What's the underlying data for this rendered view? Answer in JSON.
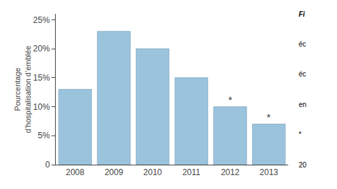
{
  "chart_data": {
    "type": "bar",
    "categories": [
      "2008",
      "2009",
      "2010",
      "2011",
      "2012",
      "2013"
    ],
    "values": [
      13,
      23,
      20,
      15,
      10,
      7
    ],
    "color": "#9bc3dc",
    "ylabel": "Pourcentage\nd’hospitalisation d’emblée",
    "ylim": [
      0,
      26
    ],
    "yticks": [
      0,
      {
        "value": 5,
        "label": "5%"
      },
      {
        "value": 10,
        "label": "10%"
      },
      {
        "value": 15,
        "label": "15%"
      },
      {
        "value": 20,
        "label": "20%"
      },
      {
        "value": 25,
        "label": "25%"
      }
    ],
    "grid": false,
    "annotations": [
      {
        "category": "2012",
        "text": "*"
      },
      {
        "category": "2013",
        "text": "*"
      },
      {
        "text": "Fi"
      },
      {
        "text": "éc"
      },
      {
        "text": "éc"
      },
      {
        "text": "en"
      },
      {
        "text": "*"
      },
      {
        "text": "20"
      }
    ]
  }
}
